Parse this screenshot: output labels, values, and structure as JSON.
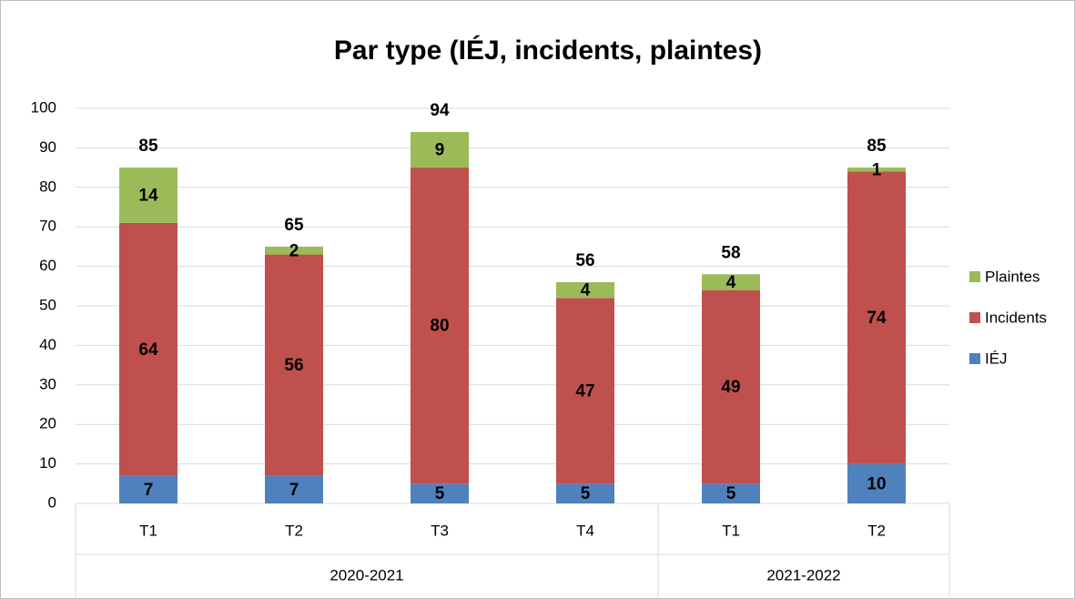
{
  "chart_data": {
    "type": "stacked_bar",
    "title": "Par type (IÉJ, incidents, plaintes)",
    "groups": [
      {
        "name": "2020-2021",
        "categories": [
          "T1",
          "T2",
          "T3",
          "T4"
        ]
      },
      {
        "name": "2021-2022",
        "categories": [
          "T1",
          "T2"
        ]
      }
    ],
    "series": [
      {
        "name": "IÉJ",
        "color": "#4f81bd",
        "values": [
          7,
          7,
          5,
          5,
          5,
          10
        ]
      },
      {
        "name": "Incidents",
        "color": "#c0504d",
        "values": [
          64,
          56,
          80,
          47,
          49,
          74
        ]
      },
      {
        "name": "Plaintes",
        "color": "#9bbb59",
        "values": [
          14,
          2,
          9,
          4,
          4,
          1
        ]
      }
    ],
    "totals": [
      85,
      65,
      94,
      56,
      58,
      85
    ],
    "ylim": [
      0,
      100
    ],
    "yticks": [
      0,
      10,
      20,
      30,
      40,
      50,
      60,
      70,
      80,
      90,
      100
    ],
    "grid": true,
    "legend": "right"
  }
}
